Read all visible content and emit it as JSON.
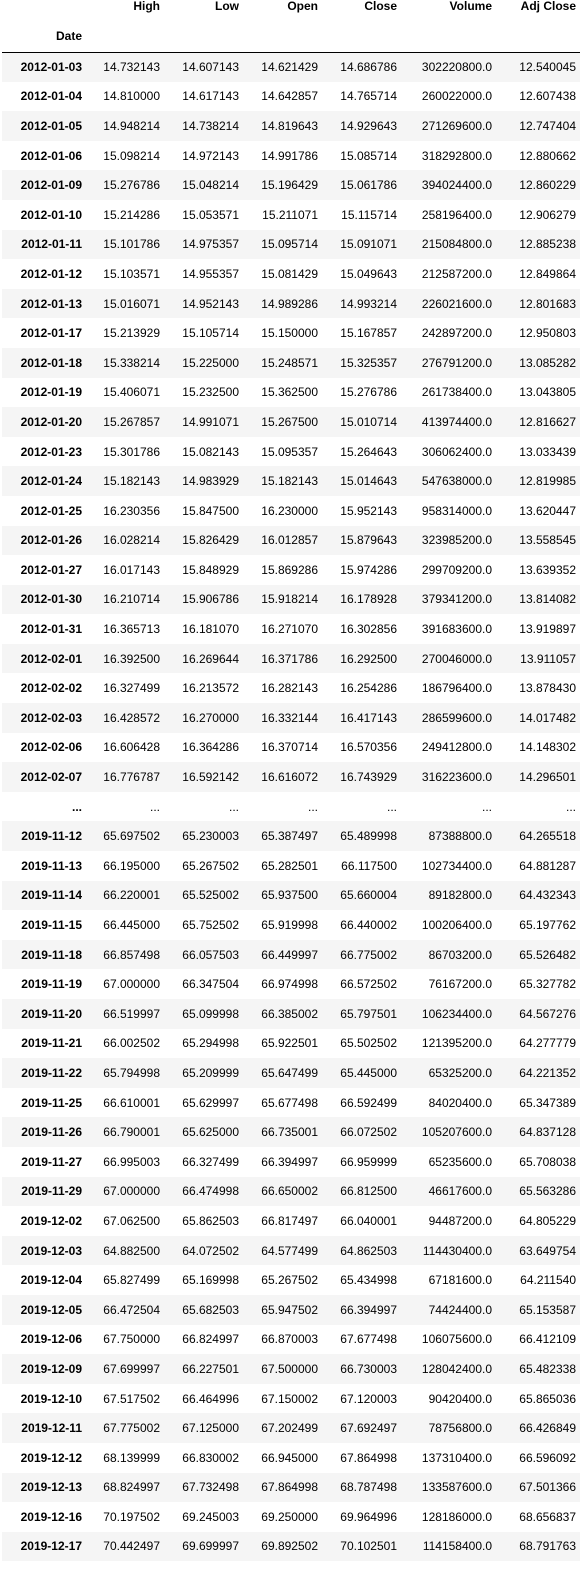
{
  "table": {
    "columns": [
      "High",
      "Low",
      "Open",
      "Close",
      "Volume",
      "Adj Close"
    ],
    "index_name": "Date",
    "rows": [
      {
        "date": "2012-01-03",
        "values": [
          "14.732143",
          "14.607143",
          "14.621429",
          "14.686786",
          "302220800.0",
          "12.540045"
        ]
      },
      {
        "date": "2012-01-04",
        "values": [
          "14.810000",
          "14.617143",
          "14.642857",
          "14.765714",
          "260022000.0",
          "12.607438"
        ]
      },
      {
        "date": "2012-01-05",
        "values": [
          "14.948214",
          "14.738214",
          "14.819643",
          "14.929643",
          "271269600.0",
          "12.747404"
        ]
      },
      {
        "date": "2012-01-06",
        "values": [
          "15.098214",
          "14.972143",
          "14.991786",
          "15.085714",
          "318292800.0",
          "12.880662"
        ]
      },
      {
        "date": "2012-01-09",
        "values": [
          "15.276786",
          "15.048214",
          "15.196429",
          "15.061786",
          "394024400.0",
          "12.860229"
        ]
      },
      {
        "date": "2012-01-10",
        "values": [
          "15.214286",
          "15.053571",
          "15.211071",
          "15.115714",
          "258196400.0",
          "12.906279"
        ]
      },
      {
        "date": "2012-01-11",
        "values": [
          "15.101786",
          "14.975357",
          "15.095714",
          "15.091071",
          "215084800.0",
          "12.885238"
        ]
      },
      {
        "date": "2012-01-12",
        "values": [
          "15.103571",
          "14.955357",
          "15.081429",
          "15.049643",
          "212587200.0",
          "12.849864"
        ]
      },
      {
        "date": "2012-01-13",
        "values": [
          "15.016071",
          "14.952143",
          "14.989286",
          "14.993214",
          "226021600.0",
          "12.801683"
        ]
      },
      {
        "date": "2012-01-17",
        "values": [
          "15.213929",
          "15.105714",
          "15.150000",
          "15.167857",
          "242897200.0",
          "12.950803"
        ]
      },
      {
        "date": "2012-01-18",
        "values": [
          "15.338214",
          "15.225000",
          "15.248571",
          "15.325357",
          "276791200.0",
          "13.085282"
        ]
      },
      {
        "date": "2012-01-19",
        "values": [
          "15.406071",
          "15.232500",
          "15.362500",
          "15.276786",
          "261738400.0",
          "13.043805"
        ]
      },
      {
        "date": "2012-01-20",
        "values": [
          "15.267857",
          "14.991071",
          "15.267500",
          "15.010714",
          "413974400.0",
          "12.816627"
        ]
      },
      {
        "date": "2012-01-23",
        "values": [
          "15.301786",
          "15.082143",
          "15.095357",
          "15.264643",
          "306062400.0",
          "13.033439"
        ]
      },
      {
        "date": "2012-01-24",
        "values": [
          "15.182143",
          "14.983929",
          "15.182143",
          "15.014643",
          "547638000.0",
          "12.819985"
        ]
      },
      {
        "date": "2012-01-25",
        "values": [
          "16.230356",
          "15.847500",
          "16.230000",
          "15.952143",
          "958314000.0",
          "13.620447"
        ]
      },
      {
        "date": "2012-01-26",
        "values": [
          "16.028214",
          "15.826429",
          "16.012857",
          "15.879643",
          "323985200.0",
          "13.558545"
        ]
      },
      {
        "date": "2012-01-27",
        "values": [
          "16.017143",
          "15.848929",
          "15.869286",
          "15.974286",
          "299709200.0",
          "13.639352"
        ]
      },
      {
        "date": "2012-01-30",
        "values": [
          "16.210714",
          "15.906786",
          "15.918214",
          "16.178928",
          "379341200.0",
          "13.814082"
        ]
      },
      {
        "date": "2012-01-31",
        "values": [
          "16.365713",
          "16.181070",
          "16.271070",
          "16.302856",
          "391683600.0",
          "13.919897"
        ]
      },
      {
        "date": "2012-02-01",
        "values": [
          "16.392500",
          "16.269644",
          "16.371786",
          "16.292500",
          "270046000.0",
          "13.911057"
        ]
      },
      {
        "date": "2012-02-02",
        "values": [
          "16.327499",
          "16.213572",
          "16.282143",
          "16.254286",
          "186796400.0",
          "13.878430"
        ]
      },
      {
        "date": "2012-02-03",
        "values": [
          "16.428572",
          "16.270000",
          "16.332144",
          "16.417143",
          "286599600.0",
          "14.017482"
        ]
      },
      {
        "date": "2012-02-06",
        "values": [
          "16.606428",
          "16.364286",
          "16.370714",
          "16.570356",
          "249412800.0",
          "14.148302"
        ]
      },
      {
        "date": "2012-02-07",
        "values": [
          "16.776787",
          "16.592142",
          "16.616072",
          "16.743929",
          "316223600.0",
          "14.296501"
        ]
      },
      {
        "date": "...",
        "values": [
          "...",
          "...",
          "...",
          "...",
          "...",
          "..."
        ]
      },
      {
        "date": "2019-11-12",
        "values": [
          "65.697502",
          "65.230003",
          "65.387497",
          "65.489998",
          "87388800.0",
          "64.265518"
        ]
      },
      {
        "date": "2019-11-13",
        "values": [
          "66.195000",
          "65.267502",
          "65.282501",
          "66.117500",
          "102734400.0",
          "64.881287"
        ]
      },
      {
        "date": "2019-11-14",
        "values": [
          "66.220001",
          "65.525002",
          "65.937500",
          "65.660004",
          "89182800.0",
          "64.432343"
        ]
      },
      {
        "date": "2019-11-15",
        "values": [
          "66.445000",
          "65.752502",
          "65.919998",
          "66.440002",
          "100206400.0",
          "65.197762"
        ]
      },
      {
        "date": "2019-11-18",
        "values": [
          "66.857498",
          "66.057503",
          "66.449997",
          "66.775002",
          "86703200.0",
          "65.526482"
        ]
      },
      {
        "date": "2019-11-19",
        "values": [
          "67.000000",
          "66.347504",
          "66.974998",
          "66.572502",
          "76167200.0",
          "65.327782"
        ]
      },
      {
        "date": "2019-11-20",
        "values": [
          "66.519997",
          "65.099998",
          "66.385002",
          "65.797501",
          "106234400.0",
          "64.567276"
        ]
      },
      {
        "date": "2019-11-21",
        "values": [
          "66.002502",
          "65.294998",
          "65.922501",
          "65.502502",
          "121395200.0",
          "64.277779"
        ]
      },
      {
        "date": "2019-11-22",
        "values": [
          "65.794998",
          "65.209999",
          "65.647499",
          "65.445000",
          "65325200.0",
          "64.221352"
        ]
      },
      {
        "date": "2019-11-25",
        "values": [
          "66.610001",
          "65.629997",
          "65.677498",
          "66.592499",
          "84020400.0",
          "65.347389"
        ]
      },
      {
        "date": "2019-11-26",
        "values": [
          "66.790001",
          "65.625000",
          "66.735001",
          "66.072502",
          "105207600.0",
          "64.837128"
        ]
      },
      {
        "date": "2019-11-27",
        "values": [
          "66.995003",
          "66.327499",
          "66.394997",
          "66.959999",
          "65235600.0",
          "65.708038"
        ]
      },
      {
        "date": "2019-11-29",
        "values": [
          "67.000000",
          "66.474998",
          "66.650002",
          "66.812500",
          "46617600.0",
          "65.563286"
        ]
      },
      {
        "date": "2019-12-02",
        "values": [
          "67.062500",
          "65.862503",
          "66.817497",
          "66.040001",
          "94487200.0",
          "64.805229"
        ]
      },
      {
        "date": "2019-12-03",
        "values": [
          "64.882500",
          "64.072502",
          "64.577499",
          "64.862503",
          "114430400.0",
          "63.649754"
        ]
      },
      {
        "date": "2019-12-04",
        "values": [
          "65.827499",
          "65.169998",
          "65.267502",
          "65.434998",
          "67181600.0",
          "64.211540"
        ]
      },
      {
        "date": "2019-12-05",
        "values": [
          "66.472504",
          "65.682503",
          "65.947502",
          "66.394997",
          "74424400.0",
          "65.153587"
        ]
      },
      {
        "date": "2019-12-06",
        "values": [
          "67.750000",
          "66.824997",
          "66.870003",
          "67.677498",
          "106075600.0",
          "66.412109"
        ]
      },
      {
        "date": "2019-12-09",
        "values": [
          "67.699997",
          "66.227501",
          "67.500000",
          "66.730003",
          "128042400.0",
          "65.482338"
        ]
      },
      {
        "date": "2019-12-10",
        "values": [
          "67.517502",
          "66.464996",
          "67.150002",
          "67.120003",
          "90420400.0",
          "65.865036"
        ]
      },
      {
        "date": "2019-12-11",
        "values": [
          "67.775002",
          "67.125000",
          "67.202499",
          "67.692497",
          "78756800.0",
          "66.426849"
        ]
      },
      {
        "date": "2019-12-12",
        "values": [
          "68.139999",
          "66.830002",
          "66.945000",
          "67.864998",
          "137310400.0",
          "66.596092"
        ]
      },
      {
        "date": "2019-12-13",
        "values": [
          "68.824997",
          "67.732498",
          "67.864998",
          "68.787498",
          "133587600.0",
          "67.501366"
        ]
      },
      {
        "date": "2019-12-16",
        "values": [
          "70.197502",
          "69.245003",
          "69.250000",
          "69.964996",
          "128186000.0",
          "68.656837"
        ]
      },
      {
        "date": "2019-12-17",
        "values": [
          "70.442497",
          "69.699997",
          "69.892502",
          "70.102501",
          "114158400.0",
          "68.791763"
        ]
      }
    ]
  }
}
